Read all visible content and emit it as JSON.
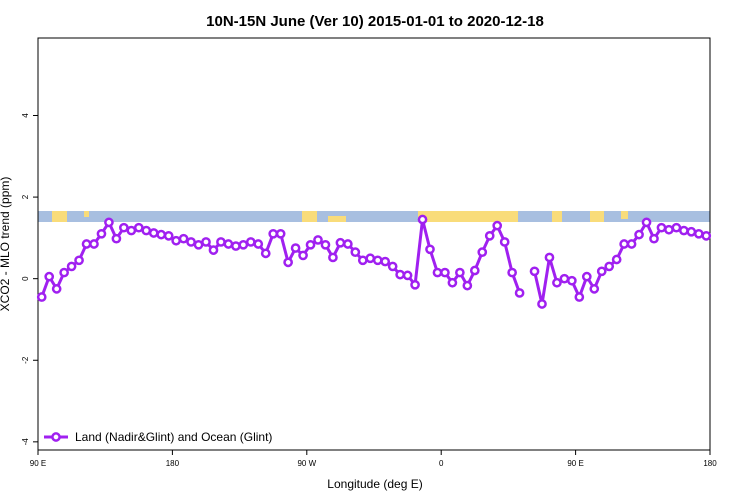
{
  "chart_data": {
    "type": "line",
    "title": "10N-15N June (Ver 10)   2015-01-01 to 2020-12-18",
    "x_label": "Longitude (deg E)",
    "y_label": "XCO2 - MLO trend (ppm)",
    "xlim": [
      90,
      540
    ],
    "ylim": [
      -4.2,
      5.9
    ],
    "xticks": [
      {
        "value": 90,
        "label": "90 E"
      },
      180,
      {
        "value": 270,
        "label": "90 W"
      },
      {
        "value": 360,
        "label": "0"
      },
      {
        "value": 450,
        "label": "90 E"
      },
      {
        "value": 540,
        "label": "180"
      }
    ],
    "yticks": [
      -4,
      -2,
      0,
      2,
      4
    ],
    "legend": "bottom-left",
    "x": [
      92.5,
      97.5,
      102.5,
      107.5,
      112.5,
      117.5,
      122.5,
      127.5,
      132.5,
      137.5,
      142.5,
      147.5,
      152.5,
      157.5,
      162.5,
      167.5,
      172.5,
      177.5,
      182.5,
      187.5,
      192.5,
      197.5,
      202.5,
      207.5,
      212.5,
      217.5,
      222.5,
      227.5,
      232.5,
      237.5,
      242.5,
      247.5,
      252.5,
      257.5,
      262.5,
      267.5,
      272.5,
      277.5,
      282.5,
      287.5,
      292.5,
      297.5,
      302.5,
      307.5,
      312.5,
      317.5,
      322.5,
      327.5,
      332.5,
      337.5,
      342.5,
      347.5,
      352.5,
      357.5,
      362.5,
      367.5,
      372.5,
      377.5,
      382.5,
      387.5,
      392.5,
      397.5,
      402.5,
      407.5,
      412.5,
      417.5,
      422.5,
      427.5,
      432.5,
      437.5,
      442.5,
      447.5,
      452.5,
      457.5,
      462.5,
      467.5,
      472.5,
      477.5,
      482.5,
      487.5,
      492.5,
      497.5,
      502.5,
      507.5,
      512.5,
      517.5,
      522.5,
      527.5,
      532.5,
      537.5
    ],
    "series": [
      {
        "name": "Land (Nadir&Glint) and Ocean (Glint)",
        "color": "#a020f0",
        "values": [
          -0.45,
          0.05,
          -0.25,
          0.15,
          0.3,
          0.45,
          0.85,
          0.85,
          1.1,
          1.38,
          0.98,
          1.25,
          1.18,
          1.25,
          1.18,
          1.12,
          1.08,
          1.05,
          0.93,
          0.98,
          0.9,
          0.83,
          0.9,
          0.7,
          0.9,
          0.85,
          0.8,
          0.83,
          0.9,
          0.85,
          0.62,
          1.1,
          1.1,
          0.4,
          0.75,
          0.57,
          0.83,
          0.95,
          0.83,
          0.52,
          0.88,
          0.85,
          0.65,
          0.45,
          0.5,
          0.45,
          0.42,
          0.3,
          0.1,
          0.08,
          -0.15,
          1.45,
          0.72,
          0.15,
          0.15,
          -0.1,
          0.15,
          -0.17,
          0.2,
          0.65,
          1.05,
          1.3,
          0.9,
          0.15,
          -0.35,
          null,
          0.18,
          -0.62,
          0.52,
          -0.1,
          0.0,
          -0.05,
          -0.45,
          0.05,
          -0.25,
          0.18,
          0.3,
          0.47,
          0.85,
          0.85,
          1.08,
          1.38,
          0.98,
          1.25,
          1.2,
          1.25,
          1.18,
          1.15,
          1.1,
          1.05
        ]
      }
    ]
  }
}
